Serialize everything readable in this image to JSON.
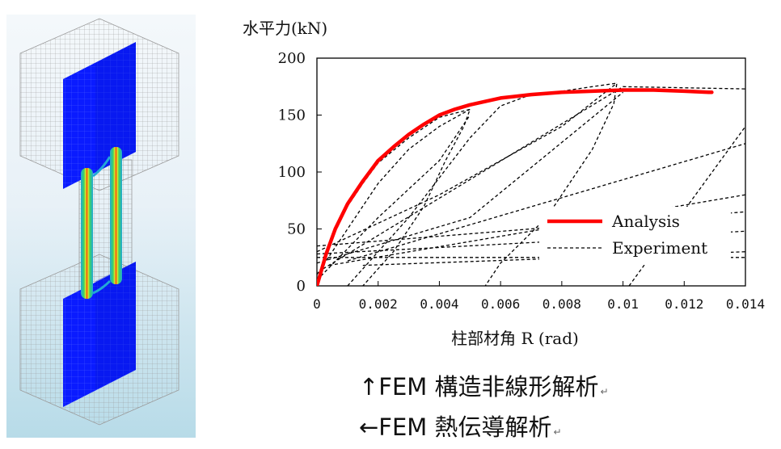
{
  "fem_model": {
    "colors": {
      "mesh_line": "#9a9a9a",
      "steel_blue": "#0a1bff",
      "heat_red": "#e21a12",
      "heat_yellow": "#f3e41a",
      "heat_green": "#39d26a",
      "heat_cyan": "#22a7d6",
      "background_top": "#f4f8fb",
      "background_bottom": "#b7dbe8"
    }
  },
  "chart_data": {
    "type": "line",
    "title": "",
    "ylabel": "水平力(kN)",
    "xlabel": "柱部材角 R (rad)",
    "xlim": [
      0,
      0.014
    ],
    "ylim": [
      0,
      200
    ],
    "x_ticks": [
      "0",
      "0.002",
      "0.004",
      "0.006",
      "0.008",
      "0.01",
      "0.012",
      "0.014"
    ],
    "y_ticks": [
      "0",
      "50",
      "100",
      "150",
      "200"
    ],
    "grid": false,
    "legend_position": "lower-right",
    "series": [
      {
        "name": "Analysis",
        "color": "#ff0000",
        "style": "solid",
        "points": [
          [
            0,
            0
          ],
          [
            0.0003,
            28
          ],
          [
            0.0006,
            50
          ],
          [
            0.001,
            72
          ],
          [
            0.0015,
            92
          ],
          [
            0.002,
            110
          ],
          [
            0.0025,
            122
          ],
          [
            0.003,
            133
          ],
          [
            0.0035,
            142
          ],
          [
            0.004,
            150
          ],
          [
            0.0045,
            155
          ],
          [
            0.005,
            159
          ],
          [
            0.006,
            165
          ],
          [
            0.007,
            168
          ],
          [
            0.008,
            170
          ],
          [
            0.009,
            171
          ],
          [
            0.01,
            172
          ],
          [
            0.011,
            172
          ],
          [
            0.012,
            171
          ],
          [
            0.0128,
            170
          ],
          [
            0.0129,
            170
          ]
        ]
      },
      {
        "name": "Experiment",
        "color": "#000000",
        "style": "dashed",
        "loops": [
          [
            [
              0,
              0
            ],
            [
              0.0002,
              20
            ],
            [
              0.0005,
              42
            ],
            [
              0.001,
              70
            ],
            [
              0.0015,
              90
            ],
            [
              0.002,
              108
            ],
            [
              0.003,
              130
            ],
            [
              0.004,
              148
            ],
            [
              0.005,
              155
            ],
            [
              0.0048,
              140
            ],
            [
              0.0042,
              110
            ],
            [
              0.0035,
              70
            ],
            [
              0.0025,
              30
            ],
            [
              0.0015,
              0
            ]
          ],
          [
            [
              0,
              10
            ],
            [
              0.001,
              50
            ],
            [
              0.002,
              90
            ],
            [
              0.003,
              120
            ],
            [
              0.004,
              140
            ],
            [
              0.005,
              155
            ]
          ],
          [
            [
              0,
              5
            ],
            [
              0.002,
              60
            ],
            [
              0.004,
              110
            ],
            [
              0.005,
              150
            ]
          ],
          [
            [
              0.001,
              0
            ],
            [
              0.003,
              60
            ],
            [
              0.005,
              130
            ],
            [
              0.006,
              158
            ],
            [
              0.007,
              168
            ],
            [
              0.008,
              171
            ],
            [
              0.009,
              175
            ],
            [
              0.0098,
              178
            ],
            [
              0.0097,
              160
            ],
            [
              0.009,
              120
            ],
            [
              0.0075,
              60
            ],
            [
              0.006,
              20
            ],
            [
              0.0055,
              0
            ]
          ],
          [
            [
              0,
              30
            ],
            [
              0.004,
              80
            ],
            [
              0.008,
              140
            ],
            [
              0.0098,
              178
            ]
          ],
          [
            [
              0,
              20
            ],
            [
              0.005,
              60
            ],
            [
              0.01,
              170
            ]
          ],
          [
            [
              0.0002,
              15
            ],
            [
              0.01,
              175
            ],
            [
              0.014,
              173
            ]
          ],
          [
            [
              0.0102,
              0
            ],
            [
              0.014,
              140
            ]
          ],
          [
            [
              0.001,
              22
            ],
            [
              0.014,
              125
            ]
          ],
          [
            [
              0.0004,
              18
            ],
            [
              0.014,
              80
            ]
          ],
          [
            [
              0,
              35
            ],
            [
              0.014,
              65
            ]
          ],
          [
            [
              0,
              28
            ],
            [
              0.014,
              48
            ]
          ],
          [
            [
              0,
              25
            ],
            [
              0.014,
              25
            ]
          ],
          [
            [
              0.0015,
              18
            ],
            [
              0.014,
              30
            ]
          ]
        ]
      }
    ]
  },
  "captions": {
    "line1": "↑FEM 構造非線形解析",
    "line2": "←FEM 熱伝導解析",
    "return_mark": "↵"
  }
}
